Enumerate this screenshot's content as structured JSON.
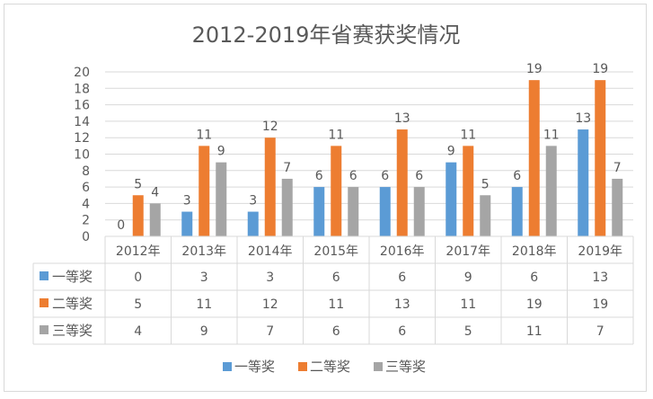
{
  "chart_data": {
    "type": "bar",
    "title": "2012-2019年省赛获奖情况",
    "categories": [
      "2012年",
      "2013年",
      "2014年",
      "2015年",
      "2016年",
      "2017年",
      "2018年",
      "2019年"
    ],
    "series": [
      {
        "name": "一等奖",
        "color": "#5b9bd5",
        "values": [
          0,
          3,
          3,
          6,
          6,
          9,
          6,
          13
        ]
      },
      {
        "name": "二等奖",
        "color": "#ed7d31",
        "values": [
          5,
          11,
          12,
          11,
          13,
          11,
          19,
          19
        ]
      },
      {
        "name": "三等奖",
        "color": "#a5a5a5",
        "values": [
          4,
          9,
          7,
          6,
          6,
          5,
          11,
          7
        ]
      }
    ],
    "ylim": [
      0,
      20
    ],
    "yticks": [
      0,
      2,
      4,
      6,
      8,
      10,
      12,
      14,
      16,
      18,
      20
    ],
    "grid": true,
    "data_table": true,
    "legend": "bottom"
  }
}
